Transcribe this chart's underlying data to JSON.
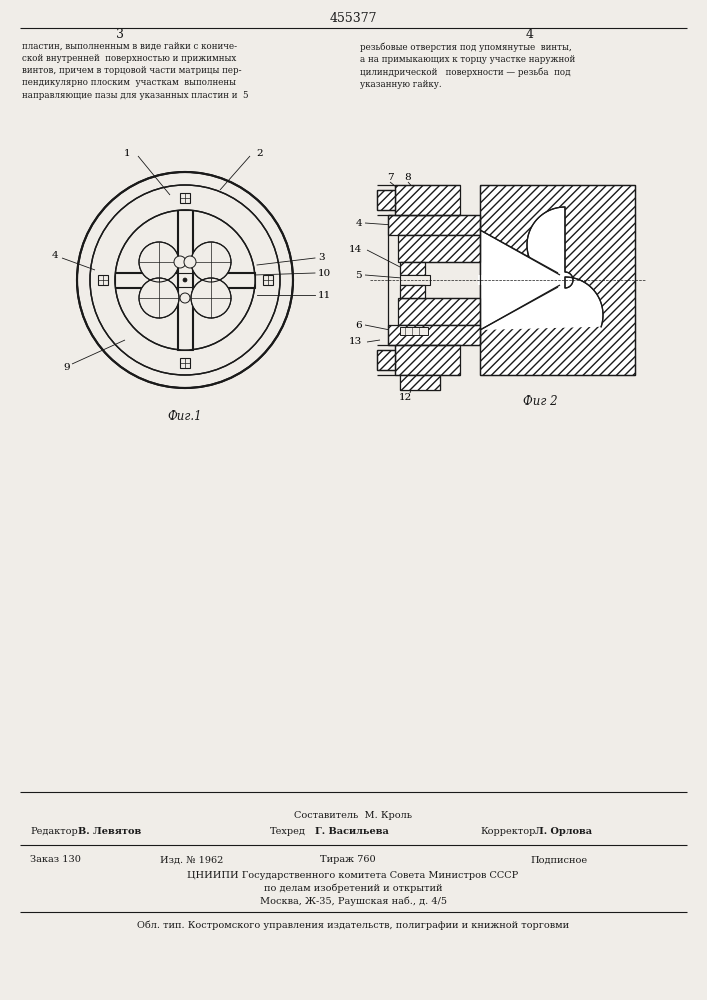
{
  "bg_color": "#f0ede8",
  "line_color": "#1a1a1a",
  "patent_number": "455377",
  "page_left": "3",
  "page_right": "4",
  "text_col1": "пластин, выполненным в виде гайки с кониче-\nской внутренней  поверхностью и прижимных\nвинтов, причем в торцовой части матрицы пер-\nпендикулярно плоским  участкам  выполнены\nнаправляющие пазы для указанных пластин и  5",
  "text_col2": "резьбовые отверстия под упомянутые  винты,\nа на примыкающих к торцу участке наружной\nцилиндрической   поверхности — резьба  под\nуказанную гайку.",
  "fig1_caption": "Фиг.1",
  "fig2_caption": "Фиг 2",
  "footer_compositor": "Составитель  М. Кроль",
  "footer_editor_label": "Редактор",
  "footer_editor_name": "В. Левятов",
  "footer_techred_label": "Техред",
  "footer_techred_name": "Г. Васильева",
  "footer_corrector_label": "Корректор",
  "footer_corrector_name": "Л. Орлова",
  "footer_order": "Заказ 130",
  "footer_izd": "Изд. № 1962",
  "footer_tirazh": "Тираж 760",
  "footer_podpisnoe": "Подписное",
  "footer_org": "ЦНИИПИ Государственного комитета Совета Министров СССР",
  "footer_org2": "по делам изобретений и открытий",
  "footer_addr": "Москва, Ж-35, Раушская наб., д. 4/5",
  "footer_bottom": "Обл. тип. Костромского управления издательств, полиграфии и книжной торговми"
}
